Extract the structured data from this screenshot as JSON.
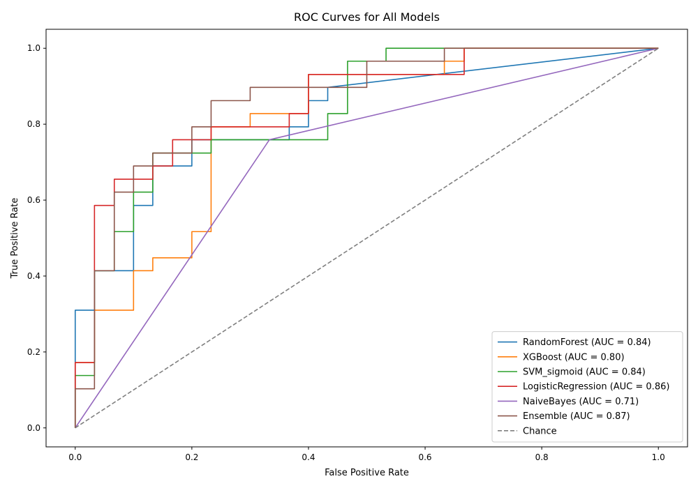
{
  "chart_data": {
    "type": "line",
    "title": "ROC Curves for All Models",
    "xlabel": "False Positive Rate",
    "ylabel": "True Positive Rate",
    "xlim": [
      -0.05,
      1.05
    ],
    "ylim": [
      -0.05,
      1.05
    ],
    "xticks": [
      0.0,
      0.2,
      0.4,
      0.6,
      0.8,
      1.0
    ],
    "yticks": [
      0.0,
      0.2,
      0.4,
      0.6,
      0.8,
      1.0
    ],
    "xtick_labels": [
      "0.0",
      "0.2",
      "0.4",
      "0.6",
      "0.8",
      "1.0"
    ],
    "ytick_labels": [
      "0.0",
      "0.2",
      "0.4",
      "0.6",
      "0.8",
      "1.0"
    ],
    "grid": false,
    "legend_position": "bottom-right",
    "series": [
      {
        "name": "RandomForest (AUC = 0.84)",
        "color": "#1f77b4",
        "dash": "solid",
        "x": [
          0,
          0,
          0.033,
          0.033,
          0.1,
          0.1,
          0.133,
          0.133,
          0.2,
          0.2,
          0.367,
          0.367,
          0.4,
          0.4,
          0.433,
          0.433,
          1
        ],
        "y": [
          0,
          0.31,
          0.31,
          0.414,
          0.414,
          0.586,
          0.586,
          0.69,
          0.69,
          0.759,
          0.759,
          0.793,
          0.793,
          0.862,
          0.862,
          0.897,
          1
        ]
      },
      {
        "name": "XGBoost (AUC = 0.80)",
        "color": "#ff7f0e",
        "dash": "solid",
        "x": [
          0,
          0,
          0.033,
          0.033,
          0.1,
          0.1,
          0.133,
          0.133,
          0.2,
          0.2,
          0.233,
          0.233,
          0.3,
          0.3,
          0.367,
          0.367,
          0.4,
          0.4,
          0.633,
          0.633,
          0.667,
          0.667,
          1
        ],
        "y": [
          0,
          0.172,
          0.172,
          0.31,
          0.31,
          0.414,
          0.414,
          0.448,
          0.448,
          0.517,
          0.517,
          0.793,
          0.793,
          0.828,
          0.828,
          0.828,
          0.828,
          0.931,
          0.931,
          0.966,
          0.966,
          1,
          1
        ]
      },
      {
        "name": "SVM_sigmoid (AUC = 0.84)",
        "color": "#2ca02c",
        "dash": "solid",
        "x": [
          0,
          0,
          0.033,
          0.033,
          0.067,
          0.067,
          0.1,
          0.1,
          0.133,
          0.133,
          0.2,
          0.2,
          0.233,
          0.233,
          0.433,
          0.433,
          0.467,
          0.467,
          0.533,
          0.533,
          1
        ],
        "y": [
          0,
          0.138,
          0.138,
          0.414,
          0.414,
          0.517,
          0.517,
          0.621,
          0.621,
          0.724,
          0.724,
          0.724,
          0.724,
          0.759,
          0.759,
          0.828,
          0.828,
          0.966,
          0.966,
          1,
          1
        ]
      },
      {
        "name": "LogisticRegression (AUC = 0.86)",
        "color": "#d62728",
        "dash": "solid",
        "x": [
          0,
          0,
          0.033,
          0.033,
          0.067,
          0.067,
          0.133,
          0.133,
          0.167,
          0.167,
          0.233,
          0.233,
          0.367,
          0.367,
          0.4,
          0.4,
          0.667,
          0.667,
          1
        ],
        "y": [
          0,
          0.172,
          0.172,
          0.586,
          0.586,
          0.655,
          0.655,
          0.69,
          0.69,
          0.759,
          0.759,
          0.793,
          0.793,
          0.828,
          0.828,
          0.931,
          0.931,
          1,
          1
        ]
      },
      {
        "name": "NaiveBayes (AUC = 0.71)",
        "color": "#9467bd",
        "dash": "solid",
        "x": [
          0,
          0.333,
          1
        ],
        "y": [
          0,
          0.759,
          1
        ]
      },
      {
        "name": "Ensemble (AUC = 0.87)",
        "color": "#8c564b",
        "dash": "solid",
        "x": [
          0,
          0,
          0.033,
          0.033,
          0.067,
          0.067,
          0.1,
          0.1,
          0.133,
          0.133,
          0.2,
          0.2,
          0.233,
          0.233,
          0.3,
          0.3,
          0.5,
          0.5,
          0.633,
          0.633,
          1
        ],
        "y": [
          0,
          0.103,
          0.103,
          0.414,
          0.414,
          0.621,
          0.621,
          0.69,
          0.69,
          0.724,
          0.724,
          0.793,
          0.793,
          0.862,
          0.862,
          0.897,
          0.897,
          0.966,
          0.966,
          1,
          1
        ]
      },
      {
        "name": "Chance",
        "color": "#7f7f7f",
        "dash": "dashed",
        "x": [
          0,
          1
        ],
        "y": [
          0,
          1
        ]
      }
    ]
  }
}
